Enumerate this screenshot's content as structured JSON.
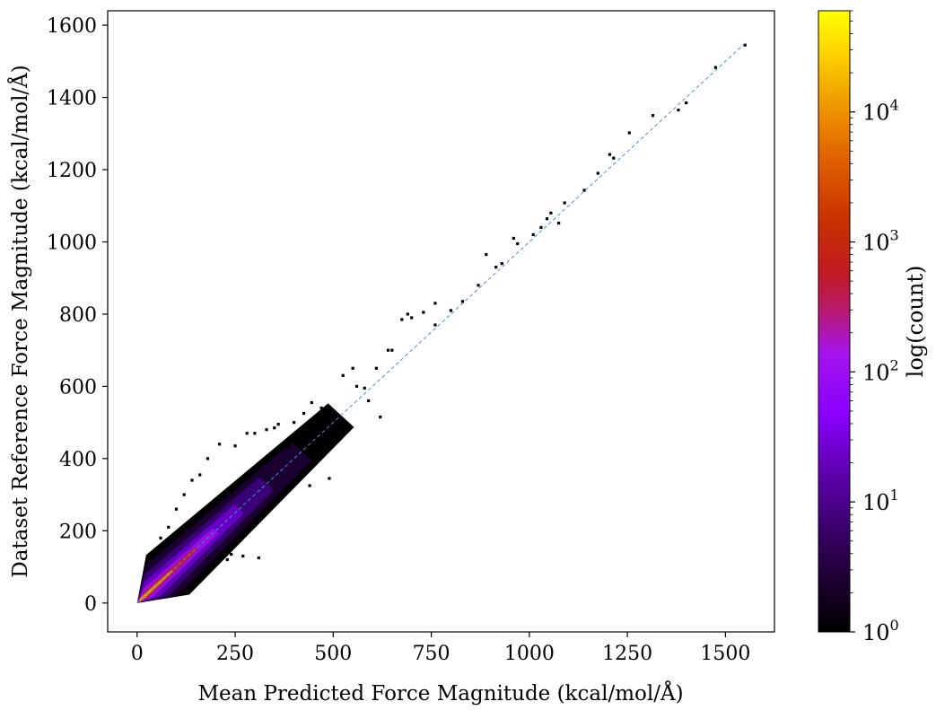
{
  "chart_data": {
    "type": "hexbin",
    "xlabel": "Mean Predicted Force Magnitude (kcal/mol/Å)",
    "ylabel": "Dataset Reference Force Magnitude (kcal/mol/Å)",
    "xlim": [
      -75,
      1625
    ],
    "ylim": [
      -80,
      1640
    ],
    "x_ticks": [
      0,
      250,
      500,
      750,
      1000,
      1250,
      1500
    ],
    "y_ticks": [
      0,
      200,
      400,
      600,
      800,
      1000,
      1200,
      1400,
      1600
    ],
    "x_tick_labels": [
      "0",
      "250",
      "500",
      "750",
      "1000",
      "1250",
      "1500"
    ],
    "y_tick_labels": [
      "0",
      "200",
      "400",
      "600",
      "800",
      "1000",
      "1200",
      "1400",
      "1600"
    ],
    "reference_line": {
      "style": "dashed",
      "color": "#4a90d9",
      "from": [
        0,
        0
      ],
      "to": [
        1555,
        1555
      ]
    },
    "colorbar": {
      "label": "log(count)",
      "scale": "log",
      "range": [
        1,
        60000
      ],
      "colormap": "gnuplot",
      "ticks": [
        {
          "value": 1,
          "base": "10",
          "exp": "0"
        },
        {
          "value": 10,
          "base": "10",
          "exp": "1"
        },
        {
          "value": 100,
          "base": "10",
          "exp": "2"
        },
        {
          "value": 1000,
          "base": "10",
          "exp": "3"
        },
        {
          "value": 10000,
          "base": "10",
          "exp": "4"
        }
      ]
    },
    "outliers": [
      [
        1550,
        1545
      ],
      [
        1475,
        1483
      ],
      [
        1400,
        1385
      ],
      [
        1380,
        1365
      ],
      [
        1315,
        1350
      ],
      [
        1255,
        1302
      ],
      [
        1215,
        1232
      ],
      [
        1205,
        1242
      ],
      [
        1175,
        1190
      ],
      [
        1140,
        1143
      ],
      [
        1090,
        1108
      ],
      [
        1075,
        1052
      ],
      [
        1055,
        1080
      ],
      [
        1045,
        1064
      ],
      [
        1030,
        1040
      ],
      [
        1010,
        1020
      ],
      [
        970,
        995
      ],
      [
        960,
        1010
      ],
      [
        930,
        940
      ],
      [
        915,
        930
      ],
      [
        890,
        965
      ],
      [
        870,
        880
      ],
      [
        830,
        835
      ],
      [
        800,
        810
      ],
      [
        760,
        770
      ],
      [
        760,
        830
      ],
      [
        730,
        805
      ],
      [
        700,
        790
      ],
      [
        690,
        800
      ],
      [
        675,
        785
      ],
      [
        650,
        700
      ],
      [
        640,
        700
      ],
      [
        610,
        650
      ],
      [
        620,
        515
      ],
      [
        580,
        595
      ],
      [
        560,
        600
      ],
      [
        550,
        650
      ],
      [
        525,
        630
      ],
      [
        500,
        520
      ],
      [
        470,
        540
      ],
      [
        460,
        500
      ],
      [
        445,
        555
      ],
      [
        440,
        325
      ],
      [
        425,
        525
      ],
      [
        400,
        500
      ],
      [
        360,
        495
      ],
      [
        350,
        485
      ],
      [
        340,
        410
      ],
      [
        330,
        480
      ],
      [
        310,
        125
      ],
      [
        300,
        470
      ],
      [
        280,
        470
      ],
      [
        270,
        130
      ],
      [
        250,
        435
      ],
      [
        210,
        440
      ],
      [
        180,
        400
      ],
      [
        160,
        355
      ],
      [
        180,
        125
      ],
      [
        200,
        145
      ],
      [
        230,
        120
      ],
      [
        240,
        135
      ],
      [
        140,
        340
      ],
      [
        120,
        300
      ],
      [
        100,
        260
      ],
      [
        130,
        45
      ],
      [
        160,
        60
      ],
      [
        170,
        90
      ],
      [
        80,
        210
      ],
      [
        60,
        180
      ],
      [
        110,
        30
      ],
      [
        490,
        345
      ],
      [
        480,
        470
      ],
      [
        420,
        470
      ],
      [
        385,
        430
      ],
      [
        590,
        560
      ]
    ]
  }
}
